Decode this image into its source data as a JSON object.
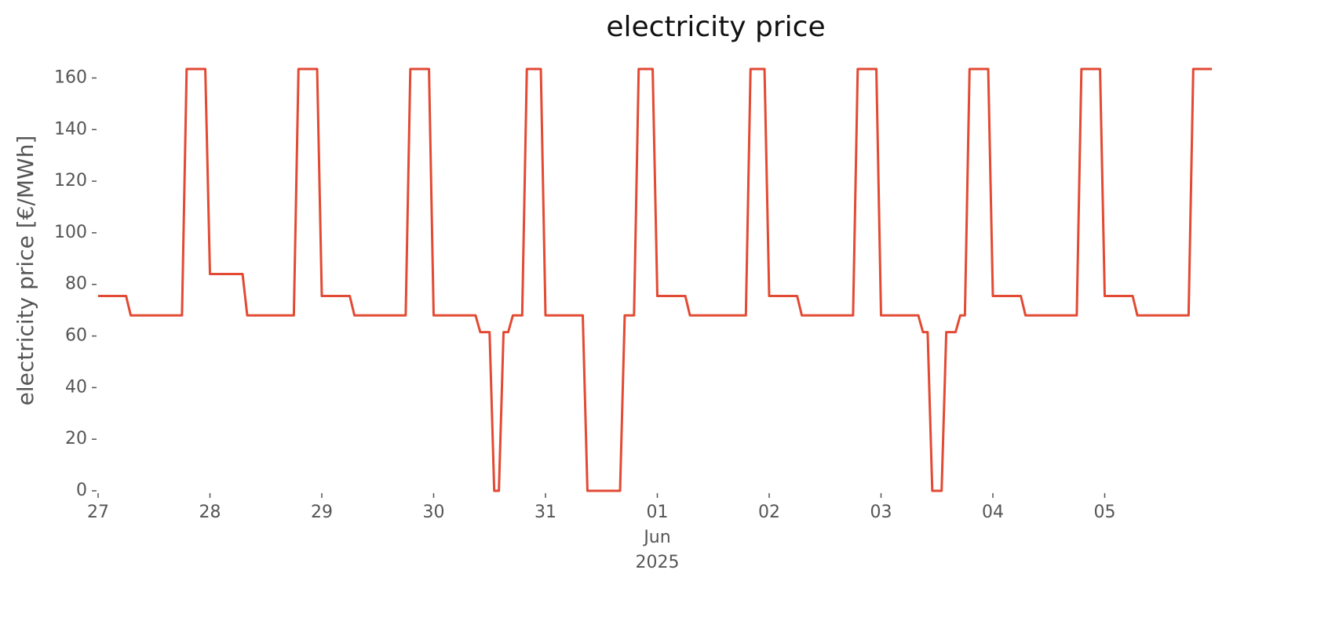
{
  "chart_data": {
    "type": "line",
    "title": "electricity price",
    "ylabel": "electricity price [€/MWh]",
    "x": [
      0,
      6,
      7,
      18,
      19,
      23,
      24,
      31,
      32,
      42,
      43,
      47,
      48,
      54,
      55,
      66,
      67,
      71,
      72,
      81,
      82,
      84,
      85,
      86,
      87,
      88,
      89,
      91,
      92,
      95,
      96,
      104,
      105,
      112,
      113,
      115,
      116,
      119,
      120,
      126,
      127,
      139,
      140,
      143,
      144,
      150,
      151,
      162,
      163,
      167,
      168,
      176,
      177,
      178,
      179,
      181,
      182,
      184,
      185,
      186,
      187,
      191,
      192,
      198,
      199,
      210,
      211,
      215,
      216,
      222,
      223,
      234,
      235,
      239
    ],
    "series": [
      {
        "name": "electricity price",
        "color": "#e24a33",
        "values": [
          75.5,
          75.5,
          68,
          68,
          163.5,
          163.5,
          84,
          84,
          68,
          68,
          163.5,
          163.5,
          75.5,
          75.5,
          68,
          68,
          163.5,
          163.5,
          68,
          68,
          61.5,
          61.5,
          0,
          0,
          61.5,
          61.5,
          68,
          68,
          163.5,
          163.5,
          68,
          68,
          0,
          0,
          68,
          68,
          163.5,
          163.5,
          75.5,
          75.5,
          68,
          68,
          163.5,
          163.5,
          75.5,
          75.5,
          68,
          68,
          163.5,
          163.5,
          68,
          68,
          61.5,
          61.5,
          0,
          0,
          61.5,
          61.5,
          68,
          68,
          163.5,
          163.5,
          75.5,
          75.5,
          68,
          68,
          163.5,
          163.5,
          75.5,
          75.5,
          68,
          68,
          163.5,
          163.5
        ]
      }
    ],
    "xlim": [
      0,
      240
    ],
    "xticks": [
      {
        "value": 0,
        "label": "27"
      },
      {
        "value": 24,
        "label": "28"
      },
      {
        "value": 48,
        "label": "29"
      },
      {
        "value": 72,
        "label": "30"
      },
      {
        "value": 96,
        "label": "31"
      },
      {
        "value": 120,
        "label": "01\nJun\n2025"
      },
      {
        "value": 144,
        "label": "02"
      },
      {
        "value": 168,
        "label": "03"
      },
      {
        "value": 192,
        "label": "04"
      },
      {
        "value": 216,
        "label": "05"
      }
    ],
    "ylim": [
      0,
      165
    ],
    "yticks": [
      0,
      20,
      40,
      60,
      80,
      100,
      120,
      140,
      160
    ],
    "grid": false
  }
}
